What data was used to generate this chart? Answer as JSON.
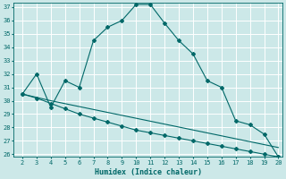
{
  "title": "",
  "xlabel": "Humidex (Indice chaleur)",
  "bg_color": "#cce8e8",
  "grid_color": "#ffffff",
  "line_color": "#006868",
  "xmin": 2,
  "xmax": 20,
  "ymin": 26,
  "ymax": 37,
  "line1_x": [
    2,
    3,
    4,
    5,
    6,
    7,
    8,
    9,
    10,
    11,
    12,
    13,
    14,
    15,
    16,
    17,
    18,
    19,
    20
  ],
  "line1_y": [
    30.5,
    32.0,
    29.5,
    31.5,
    31.0,
    34.5,
    35.5,
    36.0,
    37.2,
    37.2,
    35.8,
    34.5,
    33.5,
    31.5,
    31.0,
    28.5,
    28.2,
    27.5,
    25.8
  ],
  "line2_x": [
    2,
    3,
    4,
    5,
    6,
    7,
    8,
    9,
    10,
    11,
    12,
    13,
    14,
    15,
    16,
    17,
    18,
    19,
    20
  ],
  "line2_y": [
    30.5,
    30.2,
    29.8,
    29.4,
    29.0,
    28.7,
    28.4,
    28.1,
    27.8,
    27.6,
    27.4,
    27.2,
    27.0,
    26.8,
    26.6,
    26.4,
    26.2,
    26.0,
    25.8
  ],
  "line3_x": [
    2,
    4,
    20
  ],
  "line3_y": [
    30.5,
    30.0,
    26.5
  ],
  "yticks": [
    26,
    27,
    28,
    29,
    30,
    31,
    32,
    33,
    34,
    35,
    36,
    37
  ],
  "xticks": [
    2,
    3,
    4,
    5,
    6,
    7,
    8,
    9,
    10,
    11,
    12,
    13,
    14,
    15,
    16,
    17,
    18,
    19,
    20
  ],
  "tick_fontsize": 5.0,
  "xlabel_fontsize": 6.0
}
